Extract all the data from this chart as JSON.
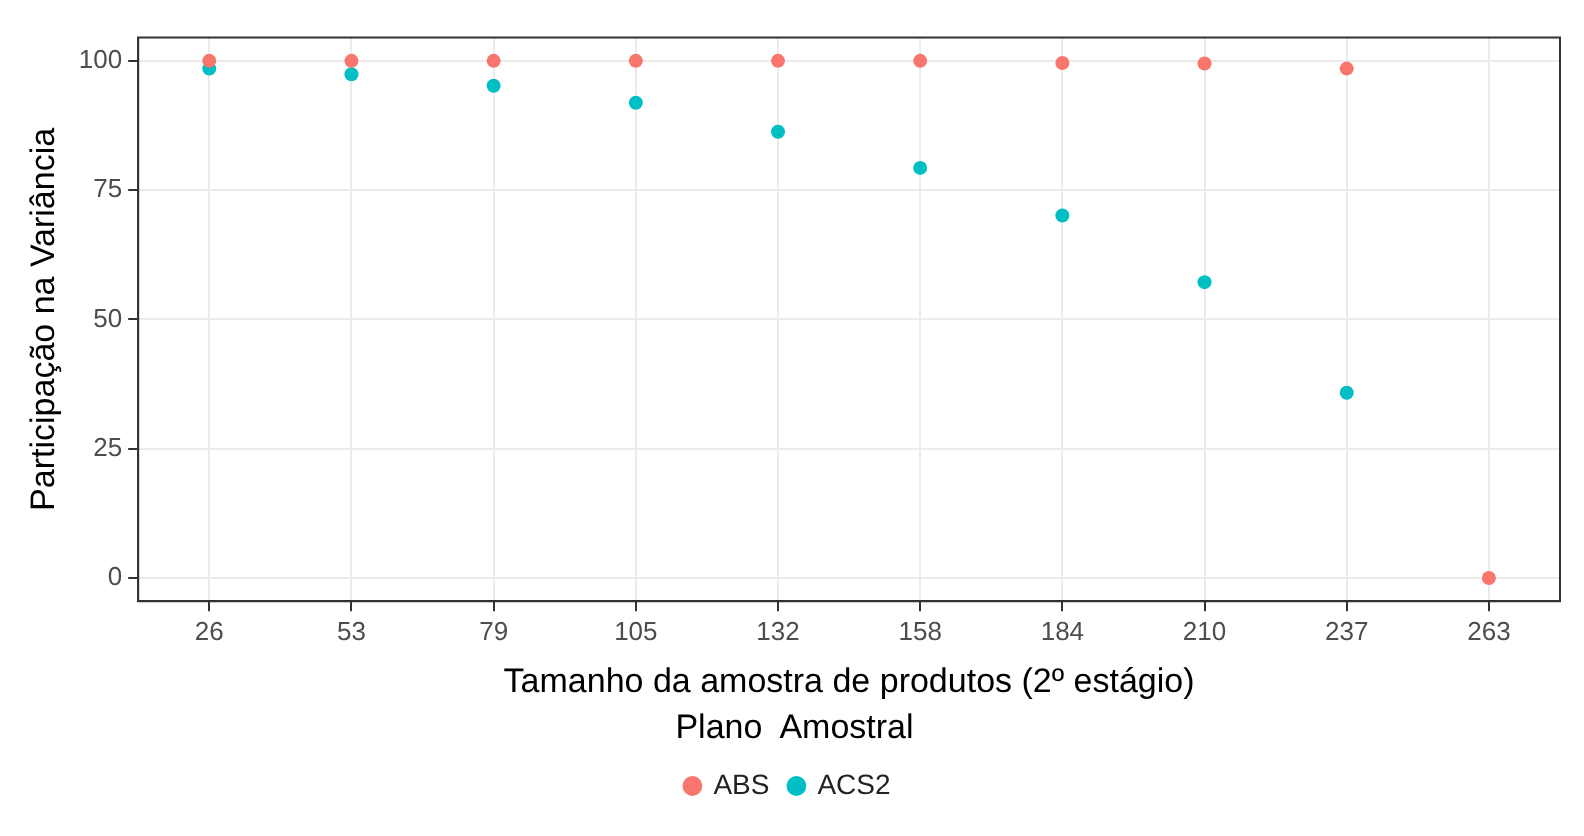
{
  "chart_data": {
    "type": "scatter",
    "xlabel": "Tamanho da amostra de produtos (2º estágio)",
    "ylabel": "Participação na Variância",
    "legend_title": "Plano  Amostral",
    "categories": [
      "26",
      "53",
      "79",
      "105",
      "132",
      "158",
      "184",
      "210",
      "237",
      "263"
    ],
    "series": [
      {
        "name": "ABS",
        "color": "#f8766d",
        "values": [
          100,
          100,
          100,
          100,
          100,
          100,
          99.6,
          99.5,
          98.5,
          0
        ]
      },
      {
        "name": "ACS2",
        "color": "#00bfc4",
        "values": [
          98.5,
          97.4,
          95.2,
          91.9,
          86.3,
          79.3,
          70.1,
          57.2,
          35.8,
          null
        ]
      }
    ],
    "ylim": [
      -4.5,
      104.5
    ],
    "yticks": [
      0,
      25,
      50,
      75,
      100
    ],
    "grid": true,
    "legend": "bottom",
    "marker": "circle"
  }
}
